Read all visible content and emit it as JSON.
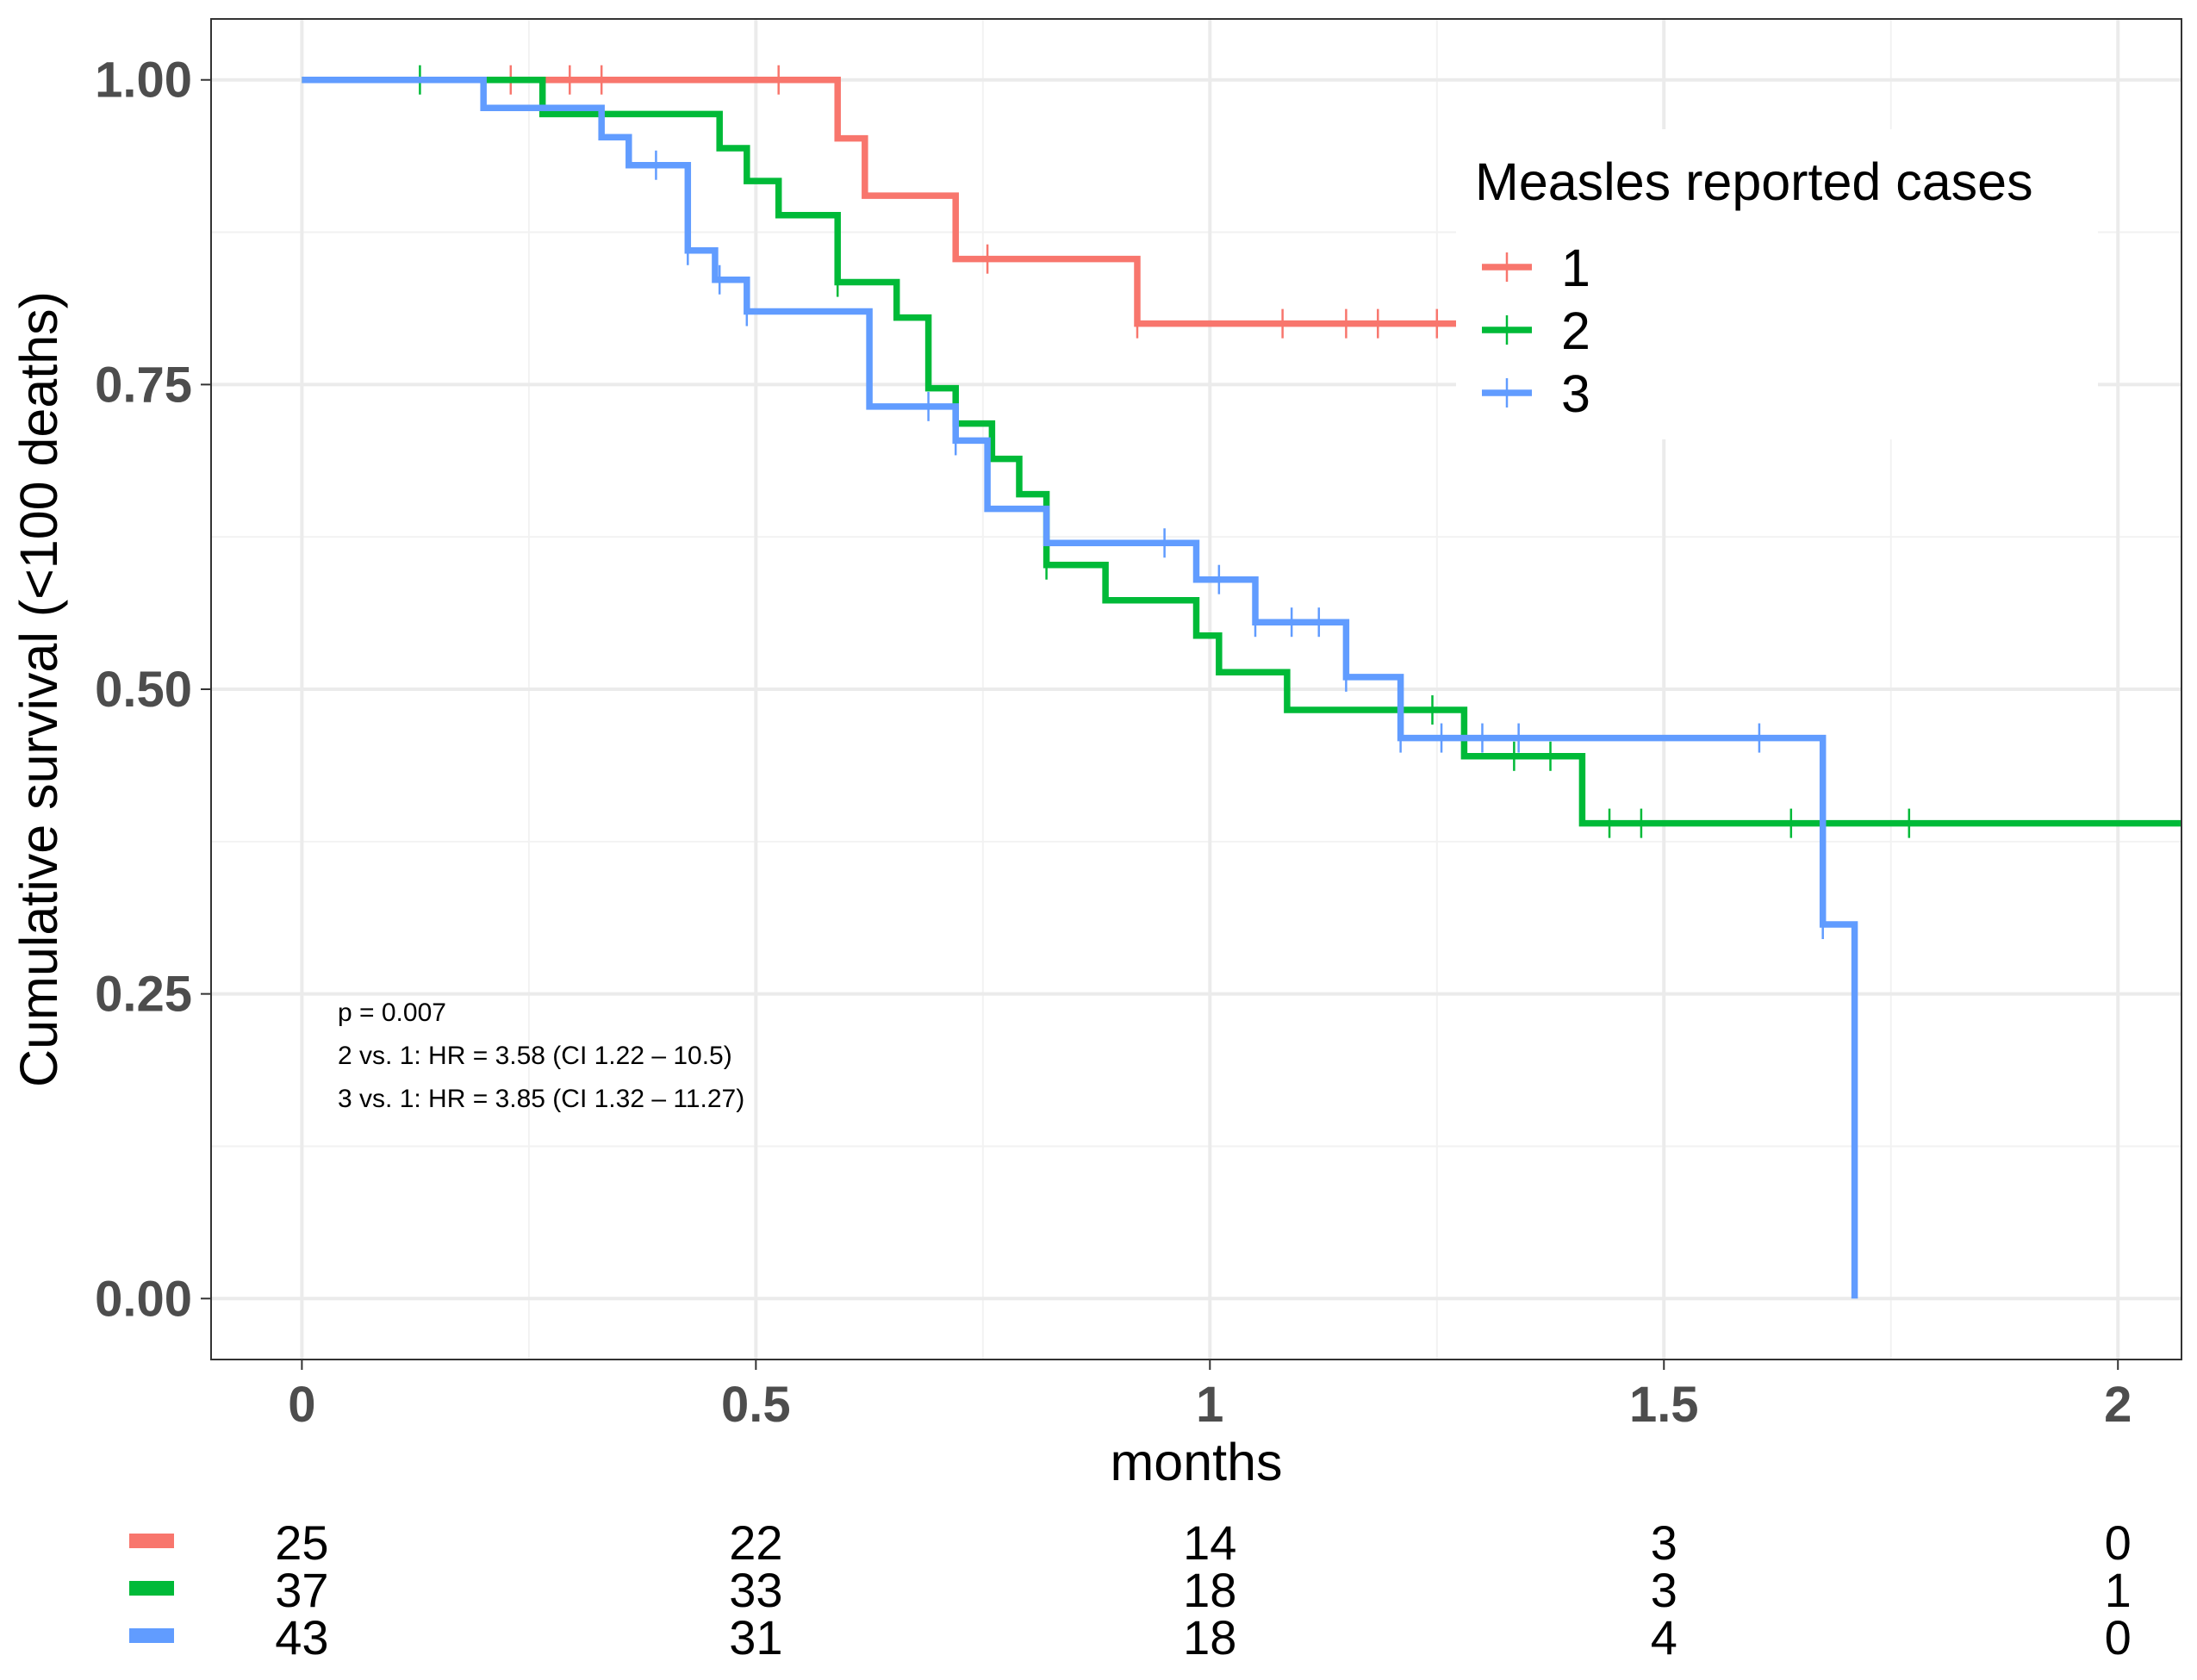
{
  "chart_data": {
    "type": "line",
    "subtype": "kaplan-meier step survival curve",
    "xlabel": "months",
    "ylabel": "Cumulative survival (<100 deaths)",
    "xlim": [
      -0.1,
      2.07
    ],
    "ylim": [
      -0.05,
      1.05
    ],
    "x_ticks": [
      0,
      0.5,
      1,
      1.5,
      2
    ],
    "x_tick_labels": [
      "0",
      "0.5",
      "1",
      "1.5",
      "2"
    ],
    "y_ticks": [
      0,
      0.25,
      0.5,
      0.75,
      1
    ],
    "y_tick_labels": [
      "0.00",
      "0.25",
      "0.50",
      "0.75",
      "1.00"
    ],
    "grid": true,
    "legend": {
      "title": "Measles reported cases",
      "position": "top-right, inside plot",
      "entries": [
        "1",
        "2",
        "3"
      ]
    },
    "annotations": [
      "p = 0.007",
      "2 vs. 1: HR = 3.58 (CI 1.22 – 10.5)",
      "3 vs. 1: HR = 3.85 (CI 1.32 – 11.27)"
    ],
    "series": [
      {
        "name": "1",
        "color": "#f8766d",
        "steps": [
          [
            0,
            1.0
          ],
          [
            0.59,
            0.952
          ],
          [
            0.62,
            0.905
          ],
          [
            0.72,
            0.853
          ],
          [
            0.92,
            0.8
          ],
          [
            1.29,
            0.8
          ]
        ],
        "censor_times": [
          0.23,
          0.295,
          0.33,
          0.525,
          0.755,
          0.92,
          1.08,
          1.15,
          1.185,
          1.25
        ]
      },
      {
        "name": "2",
        "color": "#00ba38",
        "steps": [
          [
            0,
            1.0
          ],
          [
            0.265,
            0.972
          ],
          [
            0.46,
            0.944
          ],
          [
            0.49,
            0.917
          ],
          [
            0.525,
            0.889
          ],
          [
            0.59,
            0.834
          ],
          [
            0.655,
            0.805
          ],
          [
            0.69,
            0.747
          ],
          [
            0.72,
            0.718
          ],
          [
            0.76,
            0.689
          ],
          [
            0.79,
            0.66
          ],
          [
            0.82,
            0.602
          ],
          [
            0.885,
            0.573
          ],
          [
            0.985,
            0.544
          ],
          [
            1.01,
            0.514
          ],
          [
            1.085,
            0.483
          ],
          [
            1.28,
            0.445
          ],
          [
            1.41,
            0.39
          ],
          [
            2.07,
            0.39
          ]
        ],
        "censor_times": [
          0.13,
          0.59,
          0.82,
          1.245,
          1.335,
          1.375,
          1.44,
          1.475,
          1.64,
          1.77
        ]
      },
      {
        "name": "3",
        "color": "#619cff",
        "steps": [
          [
            0,
            1.0
          ],
          [
            0.2,
            0.977
          ],
          [
            0.33,
            0.953
          ],
          [
            0.36,
            0.93
          ],
          [
            0.425,
            0.86
          ],
          [
            0.455,
            0.836
          ],
          [
            0.49,
            0.81
          ],
          [
            0.625,
            0.732
          ],
          [
            0.72,
            0.704
          ],
          [
            0.755,
            0.648
          ],
          [
            0.82,
            0.62
          ],
          [
            0.985,
            0.59
          ],
          [
            1.05,
            0.555
          ],
          [
            1.15,
            0.51
          ],
          [
            1.21,
            0.46
          ],
          [
            1.675,
            0.307
          ],
          [
            1.71,
            0.0
          ]
        ],
        "censor_times": [
          0.39,
          0.425,
          0.46,
          0.49,
          0.69,
          0.72,
          0.95,
          1.01,
          1.05,
          1.09,
          1.12,
          1.15,
          1.21,
          1.255,
          1.3,
          1.34,
          1.605,
          1.675
        ]
      }
    ],
    "risk_table": {
      "times": [
        0,
        0.5,
        1,
        1.5,
        2
      ],
      "rows": [
        {
          "name": "1",
          "color": "#f8766d",
          "counts": [
            "25",
            "22",
            "14",
            "3",
            "0"
          ]
        },
        {
          "name": "2",
          "color": "#00ba38",
          "counts": [
            "37",
            "33",
            "18",
            "3",
            "1"
          ]
        },
        {
          "name": "3",
          "color": "#619cff",
          "counts": [
            "43",
            "31",
            "18",
            "4",
            "0"
          ]
        }
      ]
    }
  }
}
